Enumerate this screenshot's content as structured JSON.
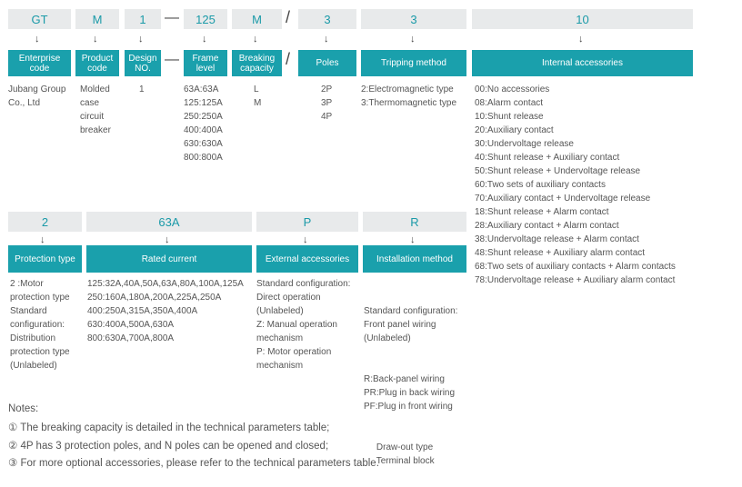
{
  "codes_row1": [
    "GT",
    "M",
    "1",
    "125",
    "M",
    "3",
    "3",
    "10"
  ],
  "codes_row2": [
    "2",
    "63A",
    "P",
    "R"
  ],
  "separators": {
    "dash": "—",
    "slash": "/"
  },
  "arrow_glyph": "↓",
  "headers_row1": {
    "enterprise": [
      "Enterprise",
      "code"
    ],
    "product": [
      "Product",
      "code"
    ],
    "design": [
      "Design",
      "NO."
    ],
    "frame": [
      "Frame",
      "level"
    ],
    "breaking": [
      "Breaking",
      "capacity"
    ],
    "poles": "Poles",
    "tripping": "Tripping method",
    "internal": "Internal accessories"
  },
  "headers_row2": {
    "protection": "Protection type",
    "rated": "Rated current",
    "external": "External accessories",
    "installation": "Installation method"
  },
  "enterprise_lines": [
    "Jubang Group",
    "Co., Ltd"
  ],
  "product_lines": [
    "Molded",
    "case",
    "circuit",
    "breaker"
  ],
  "design_value": "1",
  "frame_lines": [
    "63A:63A",
    "125:125A",
    "250:250A",
    "400:400A",
    "630:630A",
    "800:800A"
  ],
  "breaking_lines": [
    "L",
    "M"
  ],
  "poles_lines": [
    "2P",
    "3P",
    "4P"
  ],
  "tripping_lines": [
    "2:Electromagnetic type",
    "3:Thermomagnetic type"
  ],
  "internal_lines": [
    "00:No accessories",
    "08:Alarm contact",
    "10:Shunt release",
    "20:Auxiliary contact",
    "30:Undervoltage release",
    "40:Shunt release + Auxiliary contact",
    "50:Shunt release + Undervoltage release",
    "60:Two sets of auxiliary contacts",
    "70:Auxiliary contact + Undervoltage release",
    "18:Shunt release + Alarm contact",
    "28:Auxiliary contact + Alarm contact",
    "38:Undervoltage release + Alarm contact",
    "48:Shunt release + Auxiliary alarm contact",
    "68:Two sets of auxiliary contacts + Alarm contacts",
    "78:Undervoltage release + Auxiliary alarm contact"
  ],
  "protection_lines": [
    "2 :Motor",
    "protection type",
    "Standard",
    "configuration:",
    "Distribution",
    "protection type",
    "(Unlabeled)"
  ],
  "rated_lines": [
    "125:32A,40A,50A,63A,80A,100A,125A",
    "250:160A,180A,200A,225A,250A",
    "400:250A,315A,350A,400A",
    "630:400A,500A,630A",
    "800:630A,700A,800A"
  ],
  "external_lines": [
    "Standard configuration:",
    "Direct operation",
    "(Unlabeled)",
    "Z:  Manual operation",
    "mechanism",
    "P:  Motor operation",
    "mechanism"
  ],
  "installation_lines": [
    "Standard configuration:",
    "Front panel wiring",
    "(Unlabeled)",
    "R:Back-panel wiring",
    "PR:Plug in back wiring",
    "PF:Plug in front wiring",
    "     Draw-out type",
    "     Terminal block"
  ],
  "notes": {
    "title": "Notes:",
    "items": [
      "① The breaking capacity is detailed in the technical parameters table;",
      "② 4P has 3 protection poles, and N poles can be opened and closed;",
      "③ For more optional accessories, please refer to the technical parameters table."
    ]
  }
}
